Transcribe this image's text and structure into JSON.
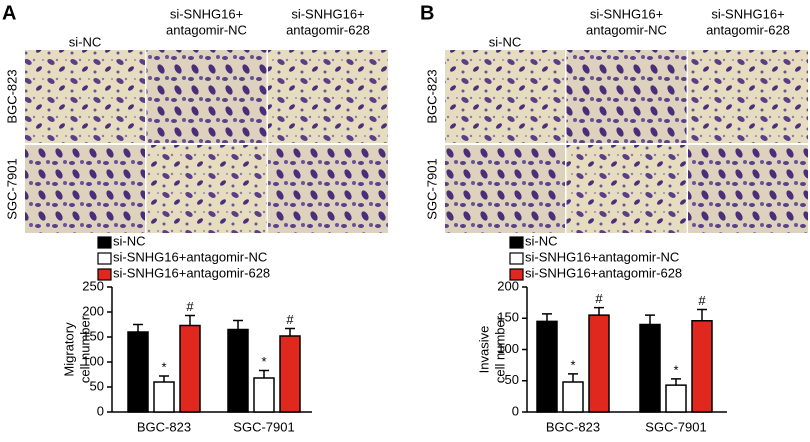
{
  "panels": [
    {
      "letter": "A",
      "columns": [
        [
          "si-NC"
        ],
        [
          "si-SNHG16+",
          "antagomir-NC"
        ],
        [
          "si-SNHG16+",
          "antagomir-628"
        ]
      ],
      "rows": [
        "BGC-823",
        "SGC-7901"
      ]
    },
    {
      "letter": "B",
      "columns": [
        [
          "si-NC"
        ],
        [
          "si-SNHG16+",
          "antagomir-NC"
        ],
        [
          "si-SNHG16+",
          "antagomir-628"
        ]
      ],
      "rows": [
        "BGC-823",
        "SGC-7901"
      ]
    }
  ],
  "chart_data": [
    {
      "type": "bar",
      "y_label": [
        "Migratory",
        "cell number"
      ],
      "categories": [
        "BGC-823",
        "SGC-7901"
      ],
      "series": [
        {
          "name": "si-NC",
          "color": "#000000",
          "values": [
            160,
            165
          ],
          "errors": [
            15,
            18
          ]
        },
        {
          "name": "si-SNHG16+antagomir-NC",
          "color": "#ffffff",
          "values": [
            60,
            68
          ],
          "errors": [
            12,
            15
          ],
          "marker_labels": [
            "*",
            "*"
          ]
        },
        {
          "name": "si-SNHG16+antagomir-628",
          "color": "#e0281e",
          "values": [
            173,
            152
          ],
          "errors": [
            20,
            15
          ],
          "marker_labels": [
            "#",
            "#"
          ]
        }
      ],
      "ylim": [
        0,
        250
      ],
      "yticks": [
        0,
        50,
        100,
        150,
        200,
        250
      ]
    },
    {
      "type": "bar",
      "y_label": [
        "Invasive",
        "cell number"
      ],
      "categories": [
        "BGC-823",
        "SGC-7901"
      ],
      "series": [
        {
          "name": "si-NC",
          "color": "#000000",
          "values": [
            145,
            140
          ],
          "errors": [
            12,
            15
          ]
        },
        {
          "name": "si-SNHG16+antagomir-NC",
          "color": "#ffffff",
          "values": [
            48,
            43
          ],
          "errors": [
            13,
            10
          ],
          "marker_labels": [
            "*",
            "*"
          ]
        },
        {
          "name": "si-SNHG16+antagomir-628",
          "color": "#e0281e",
          "values": [
            155,
            146
          ],
          "errors": [
            12,
            18
          ],
          "marker_labels": [
            "#",
            "#"
          ]
        }
      ],
      "ylim": [
        0,
        200
      ],
      "yticks": [
        0,
        50,
        100,
        150,
        200
      ]
    }
  ]
}
